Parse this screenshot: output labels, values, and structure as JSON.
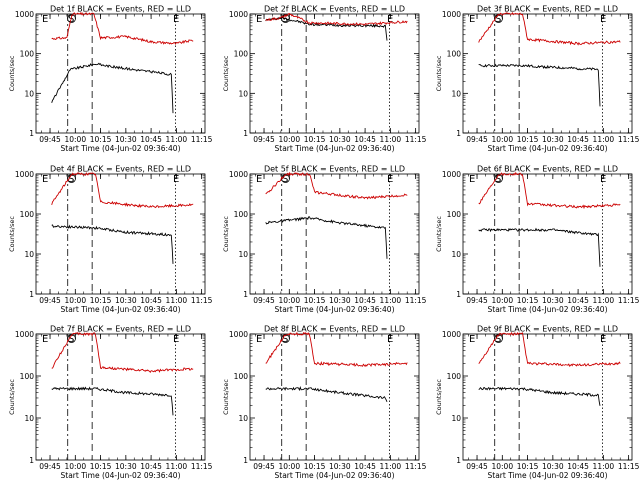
{
  "chart_data": [
    {
      "type": "line",
      "title": "Det 1f BLACK = Events, RED = LLD",
      "xlabel": "Start Time (04-Jun-02 09:36:40)",
      "ylabel": "Counts/sec",
      "yscale": "log",
      "ylim": [
        1,
        1000
      ],
      "y_ticks": [
        "1",
        "10",
        "100",
        "1000"
      ],
      "x_ticks": [
        "09:45",
        "10:00",
        "10:15",
        "10:30",
        "10:45",
        "11:00",
        "11:15"
      ],
      "markers": [
        "E",
        "S",
        "E"
      ],
      "series": [
        {
          "color": "#000000",
          "values": [
            {
              "x": "09:46",
              "y": 6
            },
            {
              "x": "09:57",
              "y": 40
            },
            {
              "x": "10:12",
              "y": 55
            },
            {
              "x": "10:25",
              "y": 45
            },
            {
              "x": "10:45",
              "y": 35
            },
            {
              "x": "10:57",
              "y": 30
            },
            {
              "x": "10:58",
              "y": 3
            }
          ]
        },
        {
          "color": "#cc0000",
          "values": [
            {
              "x": "09:46",
              "y": 240
            },
            {
              "x": "09:55",
              "y": 250
            },
            {
              "x": "09:58",
              "y": 1000
            },
            {
              "x": "10:11",
              "y": 1000
            },
            {
              "x": "10:15",
              "y": 250
            },
            {
              "x": "10:30",
              "y": 270
            },
            {
              "x": "10:45",
              "y": 200
            },
            {
              "x": "11:00",
              "y": 180
            },
            {
              "x": "11:10",
              "y": 220
            }
          ]
        }
      ]
    },
    {
      "type": "line",
      "title": "Det 2f BLACK = Events, RED = LLD",
      "xlabel": "Start Time (04-Jun-02 09:36:40)",
      "ylabel": "Counts/sec",
      "yscale": "log",
      "ylim": [
        1,
        1000
      ],
      "y_ticks": [
        "1",
        "10",
        "100",
        "1000"
      ],
      "x_ticks": [
        "09:45",
        "10:00",
        "10:15",
        "10:30",
        "10:45",
        "11:00",
        "11:15"
      ],
      "markers": [
        "E",
        "S",
        "E"
      ],
      "series": [
        {
          "color": "#000000",
          "values": [
            {
              "x": "09:46",
              "y": 700
            },
            {
              "x": "09:55",
              "y": 800
            },
            {
              "x": "10:05",
              "y": 650
            },
            {
              "x": "10:12",
              "y": 550
            },
            {
              "x": "10:30",
              "y": 520
            },
            {
              "x": "10:57",
              "y": 500
            },
            {
              "x": "10:58",
              "y": 200
            }
          ]
        },
        {
          "color": "#cc0000",
          "values": [
            {
              "x": "09:46",
              "y": 700
            },
            {
              "x": "09:55",
              "y": 800
            },
            {
              "x": "10:00",
              "y": 1000
            },
            {
              "x": "10:12",
              "y": 600
            },
            {
              "x": "10:45",
              "y": 550
            },
            {
              "x": "11:10",
              "y": 650
            }
          ]
        }
      ]
    },
    {
      "type": "line",
      "title": "Det 3f BLACK = Events, RED = LLD",
      "xlabel": "Start Time (04-Jun-02 09:36:40)",
      "ylabel": "Counts/sec",
      "yscale": "log",
      "ylim": [
        1,
        1000
      ],
      "y_ticks": [
        "1",
        "10",
        "100",
        "1000"
      ],
      "x_ticks": [
        "09:45",
        "10:00",
        "10:15",
        "10:30",
        "10:45",
        "11:00",
        "11:15"
      ],
      "markers": [
        "E",
        "S",
        "E"
      ],
      "series": [
        {
          "color": "#000000",
          "values": [
            {
              "x": "09:46",
              "y": 50
            },
            {
              "x": "10:12",
              "y": 50
            },
            {
              "x": "10:30",
              "y": 45
            },
            {
              "x": "10:57",
              "y": 40
            },
            {
              "x": "10:58",
              "y": 5
            }
          ]
        },
        {
          "color": "#cc0000",
          "values": [
            {
              "x": "09:46",
              "y": 200
            },
            {
              "x": "09:58",
              "y": 1000
            },
            {
              "x": "10:12",
              "y": 1000
            },
            {
              "x": "10:15",
              "y": 230
            },
            {
              "x": "10:45",
              "y": 180
            },
            {
              "x": "11:10",
              "y": 200
            }
          ]
        }
      ]
    },
    {
      "type": "line",
      "title": "Det 4f BLACK = Events, RED = LLD",
      "xlabel": "Start Time (04-Jun-02 09:36:40)",
      "ylabel": "Counts/sec",
      "yscale": "log",
      "ylim": [
        1,
        1000
      ],
      "y_ticks": [
        "1",
        "10",
        "100",
        "1000"
      ],
      "x_ticks": [
        "09:45",
        "10:00",
        "10:15",
        "10:30",
        "10:45",
        "11:00",
        "11:15"
      ],
      "markers": [
        "E",
        "S",
        "E"
      ],
      "series": [
        {
          "color": "#000000",
          "values": [
            {
              "x": "09:46",
              "y": 50
            },
            {
              "x": "10:12",
              "y": 45
            },
            {
              "x": "10:30",
              "y": 35
            },
            {
              "x": "10:57",
              "y": 30
            },
            {
              "x": "10:58",
              "y": 6
            }
          ]
        },
        {
          "color": "#cc0000",
          "values": [
            {
              "x": "09:46",
              "y": 180
            },
            {
              "x": "09:58",
              "y": 1000
            },
            {
              "x": "10:12",
              "y": 1000
            },
            {
              "x": "10:15",
              "y": 200
            },
            {
              "x": "10:45",
              "y": 150
            },
            {
              "x": "11:10",
              "y": 170
            }
          ]
        }
      ]
    },
    {
      "type": "line",
      "title": "Det 5f BLACK = Events, RED = LLD",
      "xlabel": "Start Time (04-Jun-02 09:36:40)",
      "ylabel": "Counts/sec",
      "yscale": "log",
      "ylim": [
        1,
        1000
      ],
      "y_ticks": [
        "1",
        "10",
        "100",
        "1000"
      ],
      "x_ticks": [
        "09:45",
        "10:00",
        "10:15",
        "10:30",
        "10:45",
        "11:00",
        "11:15"
      ],
      "markers": [
        "E",
        "S",
        "E"
      ],
      "series": [
        {
          "color": "#000000",
          "values": [
            {
              "x": "09:46",
              "y": 60
            },
            {
              "x": "10:12",
              "y": 80
            },
            {
              "x": "10:30",
              "y": 60
            },
            {
              "x": "10:57",
              "y": 45
            },
            {
              "x": "10:58",
              "y": 8
            }
          ]
        },
        {
          "color": "#cc0000",
          "values": [
            {
              "x": "09:46",
              "y": 300
            },
            {
              "x": "09:58",
              "y": 1000
            },
            {
              "x": "10:12",
              "y": 1000
            },
            {
              "x": "10:15",
              "y": 350
            },
            {
              "x": "10:45",
              "y": 250
            },
            {
              "x": "11:10",
              "y": 300
            }
          ]
        }
      ]
    },
    {
      "type": "line",
      "title": "Det 6f BLACK = Events, RED = LLD",
      "xlabel": "Start Time (04-Jun-02 09:36:40)",
      "ylabel": "Counts/sec",
      "yscale": "log",
      "ylim": [
        1,
        1000
      ],
      "y_ticks": [
        "1",
        "10",
        "100",
        "1000"
      ],
      "x_ticks": [
        "09:45",
        "10:00",
        "10:15",
        "10:30",
        "10:45",
        "11:00",
        "11:15"
      ],
      "markers": [
        "E",
        "S",
        "E"
      ],
      "series": [
        {
          "color": "#000000",
          "values": [
            {
              "x": "09:46",
              "y": 40
            },
            {
              "x": "10:12",
              "y": 40
            },
            {
              "x": "10:30",
              "y": 40
            },
            {
              "x": "10:57",
              "y": 30
            },
            {
              "x": "10:58",
              "y": 5
            }
          ]
        },
        {
          "color": "#cc0000",
          "values": [
            {
              "x": "09:46",
              "y": 180
            },
            {
              "x": "09:58",
              "y": 1000
            },
            {
              "x": "10:12",
              "y": 1000
            },
            {
              "x": "10:15",
              "y": 180
            },
            {
              "x": "10:45",
              "y": 150
            },
            {
              "x": "11:10",
              "y": 170
            }
          ]
        }
      ]
    },
    {
      "type": "line",
      "title": "Det 7f BLACK = Events, RED = LLD",
      "xlabel": "Start Time (04-Jun-02 09:36:40)",
      "ylabel": "Counts/sec",
      "yscale": "log",
      "ylim": [
        1,
        1000
      ],
      "y_ticks": [
        "1",
        "10",
        "100",
        "1000"
      ],
      "x_ticks": [
        "09:45",
        "10:00",
        "10:15",
        "10:30",
        "10:45",
        "11:00",
        "11:15"
      ],
      "markers": [
        "E",
        "S",
        "E"
      ],
      "series": [
        {
          "color": "#000000",
          "values": [
            {
              "x": "09:46",
              "y": 50
            },
            {
              "x": "10:12",
              "y": 50
            },
            {
              "x": "10:30",
              "y": 40
            },
            {
              "x": "10:57",
              "y": 35
            },
            {
              "x": "10:58",
              "y": 12
            }
          ]
        },
        {
          "color": "#cc0000",
          "values": [
            {
              "x": "09:46",
              "y": 150
            },
            {
              "x": "09:58",
              "y": 1000
            },
            {
              "x": "10:12",
              "y": 1000
            },
            {
              "x": "10:15",
              "y": 160
            },
            {
              "x": "10:45",
              "y": 130
            },
            {
              "x": "11:10",
              "y": 150
            }
          ]
        }
      ]
    },
    {
      "type": "line",
      "title": "Det 8f BLACK = Events, RED = LLD",
      "xlabel": "Start Time (04-Jun-02 09:36:40)",
      "ylabel": "Counts/sec",
      "yscale": "log",
      "ylim": [
        1,
        1000
      ],
      "y_ticks": [
        "1",
        "10",
        "100",
        "1000"
      ],
      "x_ticks": [
        "09:45",
        "10:00",
        "10:15",
        "10:30",
        "10:45",
        "11:00",
        "11:15"
      ],
      "markers": [
        "E",
        "S",
        "E"
      ],
      "series": [
        {
          "color": "#000000",
          "values": [
            {
              "x": "09:46",
              "y": 50
            },
            {
              "x": "10:12",
              "y": 50
            },
            {
              "x": "10:30",
              "y": 40
            },
            {
              "x": "10:57",
              "y": 30
            },
            {
              "x": "10:58",
              "y": 25
            }
          ]
        },
        {
          "color": "#cc0000",
          "values": [
            {
              "x": "09:46",
              "y": 200
            },
            {
              "x": "09:58",
              "y": 1000
            },
            {
              "x": "10:12",
              "y": 1000
            },
            {
              "x": "10:15",
              "y": 200
            },
            {
              "x": "10:45",
              "y": 180
            },
            {
              "x": "11:10",
              "y": 200
            }
          ]
        }
      ]
    },
    {
      "type": "line",
      "title": "Det 9f BLACK = Events, RED = LLD",
      "xlabel": "Start Time (04-Jun-02 09:36:40)",
      "ylabel": "Counts/sec",
      "yscale": "log",
      "ylim": [
        1,
        1000
      ],
      "y_ticks": [
        "1",
        "10",
        "100",
        "1000"
      ],
      "x_ticks": [
        "09:45",
        "10:00",
        "10:15",
        "10:30",
        "10:45",
        "11:00",
        "11:15"
      ],
      "markers": [
        "E",
        "S",
        "E"
      ],
      "series": [
        {
          "color": "#000000",
          "values": [
            {
              "x": "09:46",
              "y": 50
            },
            {
              "x": "10:12",
              "y": 50
            },
            {
              "x": "10:30",
              "y": 40
            },
            {
              "x": "10:57",
              "y": 35
            },
            {
              "x": "10:58",
              "y": 20
            }
          ]
        },
        {
          "color": "#cc0000",
          "values": [
            {
              "x": "09:46",
              "y": 200
            },
            {
              "x": "09:58",
              "y": 1000
            },
            {
              "x": "10:12",
              "y": 1000
            },
            {
              "x": "10:15",
              "y": 200
            },
            {
              "x": "10:45",
              "y": 180
            },
            {
              "x": "11:10",
              "y": 200
            }
          ]
        }
      ]
    }
  ]
}
